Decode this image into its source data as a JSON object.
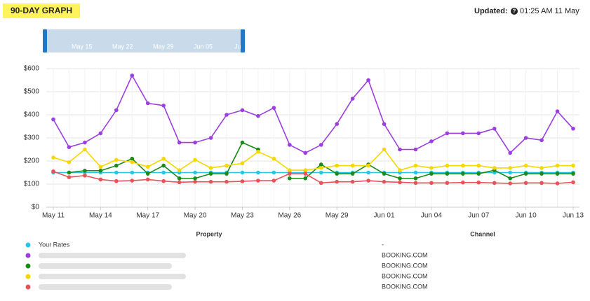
{
  "header": {
    "title": "90-DAY GRAPH",
    "updated_label": "Updated:",
    "updated_time": "01:25 AM 11 May"
  },
  "navigator": {
    "labels": [
      "May 15",
      "May 22",
      "May 29",
      "Jun 05",
      "Ju"
    ]
  },
  "chart_data": {
    "type": "line",
    "categories": [
      "May 11",
      null,
      null,
      "May 14",
      null,
      null,
      "May 17",
      null,
      null,
      "May 20",
      null,
      null,
      "May 23",
      null,
      null,
      "May 26",
      null,
      null,
      "May 29",
      null,
      null,
      "Jun 01",
      null,
      null,
      "Jun 04",
      null,
      null,
      "Jun 07",
      null,
      null,
      "Jun 10",
      null,
      null,
      "Jun 13"
    ],
    "ylim": [
      0,
      600
    ],
    "yticks": [
      {
        "value": 0,
        "label": "$0"
      },
      {
        "value": 100,
        "label": "$100"
      },
      {
        "value": 200,
        "label": "$200"
      },
      {
        "value": 300,
        "label": "$300"
      },
      {
        "value": 400,
        "label": "$400"
      },
      {
        "value": 500,
        "label": "$500"
      },
      {
        "value": 600,
        "label": "$600"
      }
    ],
    "grid": true,
    "series": [
      {
        "name": "Your Rates",
        "color": "#29c4e8",
        "values": [
          150,
          150,
          150,
          150,
          150,
          150,
          150,
          150,
          150,
          150,
          150,
          150,
          150,
          150,
          150,
          150,
          150,
          150,
          150,
          150,
          150,
          150,
          150,
          150,
          150,
          150,
          150,
          150,
          150,
          150,
          150,
          150,
          150,
          150
        ]
      },
      {
        "color": "#9b3fe0",
        "values": [
          380,
          260,
          280,
          320,
          420,
          570,
          450,
          440,
          280,
          280,
          300,
          400,
          420,
          395,
          430,
          270,
          235,
          270,
          360,
          470,
          550,
          360,
          250,
          250,
          285,
          320,
          320,
          320,
          340,
          235,
          300,
          290,
          415,
          340
        ]
      },
      {
        "color": "#1a8a1a",
        "values": [
          null,
          150,
          158,
          158,
          180,
          210,
          145,
          180,
          125,
          125,
          145,
          145,
          280,
          250,
          null,
          125,
          125,
          185,
          145,
          145,
          185,
          145,
          125,
          125,
          145,
          145,
          145,
          145,
          160,
          125,
          145,
          145,
          145,
          145
        ]
      },
      {
        "color": "#f5d800",
        "values": [
          215,
          195,
          250,
          175,
          205,
          195,
          175,
          210,
          160,
          205,
          170,
          180,
          190,
          240,
          210,
          160,
          160,
          170,
          180,
          180,
          180,
          250,
          160,
          180,
          170,
          180,
          180,
          180,
          170,
          170,
          180,
          170,
          180,
          180
        ]
      },
      {
        "color": "#e8525a",
        "values": [
          155,
          130,
          137,
          120,
          113,
          115,
          120,
          113,
          108,
          110,
          110,
          110,
          112,
          115,
          115,
          145,
          145,
          105,
          110,
          110,
          115,
          110,
          108,
          105,
          105,
          105,
          107,
          107,
          105,
          103,
          105,
          105,
          103,
          108
        ]
      }
    ]
  },
  "table": {
    "headers": [
      "Property",
      "Channel"
    ],
    "channels": [
      "-",
      "BOOKING.COM",
      "BOOKING.COM",
      "BOOKING.COM",
      "BOOKING.COM"
    ]
  }
}
